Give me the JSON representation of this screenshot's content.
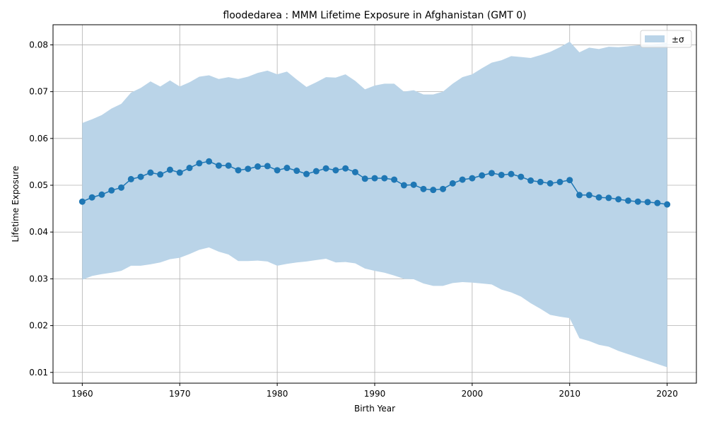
{
  "chart_data": {
    "type": "line",
    "title": "floodedarea : MMM Lifetime Exposure in Afghanistan (GMT 0)",
    "xlabel": "Birth Year",
    "ylabel": "Lifetime Exposure",
    "xlim": [
      1957,
      2023
    ],
    "ylim": [
      0.0077,
      0.0843
    ],
    "xticks": [
      1960,
      1970,
      1980,
      1990,
      2000,
      2010,
      2020
    ],
    "xtick_labels": [
      "1960",
      "1970",
      "1980",
      "1990",
      "2000",
      "2010",
      "2020"
    ],
    "yticks": [
      0.01,
      0.02,
      0.03,
      0.04,
      0.05,
      0.06,
      0.07,
      0.08
    ],
    "ytick_labels": [
      "0.01",
      "0.02",
      "0.03",
      "0.04",
      "0.05",
      "0.06",
      "0.07",
      "0.08"
    ],
    "grid": true,
    "legend": {
      "placement": "top-right",
      "entries": [
        "±σ"
      ]
    },
    "colors": {
      "line": "#1f77b4",
      "band": "#bad4e8",
      "grid": "#b0b0b0"
    },
    "x": [
      1960,
      1961,
      1962,
      1963,
      1964,
      1965,
      1966,
      1967,
      1968,
      1969,
      1970,
      1971,
      1972,
      1973,
      1974,
      1975,
      1976,
      1977,
      1978,
      1979,
      1980,
      1981,
      1982,
      1983,
      1984,
      1985,
      1986,
      1987,
      1988,
      1989,
      1990,
      1991,
      1992,
      1993,
      1994,
      1995,
      1996,
      1997,
      1998,
      1999,
      2000,
      2001,
      2002,
      2003,
      2004,
      2005,
      2006,
      2007,
      2008,
      2009,
      2010,
      2011,
      2012,
      2013,
      2014,
      2015,
      2016,
      2017,
      2018,
      2019,
      2020
    ],
    "series": [
      {
        "values": [
          0.0465,
          0.0474,
          0.048,
          0.0489,
          0.0495,
          0.0513,
          0.0518,
          0.0527,
          0.0523,
          0.0533,
          0.0527,
          0.0537,
          0.0547,
          0.0551,
          0.0542,
          0.0542,
          0.0532,
          0.0535,
          0.054,
          0.0541,
          0.0532,
          0.0537,
          0.0531,
          0.0524,
          0.053,
          0.0536,
          0.0532,
          0.0536,
          0.0528,
          0.0514,
          0.0515,
          0.0515,
          0.0512,
          0.05,
          0.0501,
          0.0492,
          0.049,
          0.0492,
          0.0504,
          0.0512,
          0.0515,
          0.0521,
          0.0526,
          0.0522,
          0.0524,
          0.0518,
          0.051,
          0.0507,
          0.0504,
          0.0507,
          0.0511,
          0.0479,
          0.0479,
          0.0474,
          0.0473,
          0.047,
          0.0467,
          0.0465,
          0.0464,
          0.0462,
          0.0459
        ]
      }
    ],
    "band": {
      "name": "±σ",
      "upper": [
        0.0633,
        0.0641,
        0.065,
        0.0664,
        0.0674,
        0.0698,
        0.0708,
        0.0722,
        0.0711,
        0.0724,
        0.0711,
        0.072,
        0.0732,
        0.0735,
        0.0727,
        0.0731,
        0.0727,
        0.0732,
        0.074,
        0.0745,
        0.0737,
        0.0743,
        0.0726,
        0.071,
        0.072,
        0.0731,
        0.073,
        0.0737,
        0.0723,
        0.0705,
        0.0713,
        0.0717,
        0.0717,
        0.07,
        0.0703,
        0.0694,
        0.0694,
        0.07,
        0.0717,
        0.0731,
        0.0737,
        0.075,
        0.0762,
        0.0767,
        0.0776,
        0.0774,
        0.0772,
        0.0778,
        0.0785,
        0.0795,
        0.0807,
        0.0784,
        0.0794,
        0.0791,
        0.0796,
        0.0795,
        0.0797,
        0.0799,
        0.08,
        0.0802,
        0.0805
      ],
      "lower": [
        0.0298,
        0.0306,
        0.031,
        0.0313,
        0.0317,
        0.0328,
        0.0328,
        0.0331,
        0.0335,
        0.0342,
        0.0345,
        0.0353,
        0.0362,
        0.0367,
        0.0358,
        0.0352,
        0.0338,
        0.0338,
        0.0339,
        0.0337,
        0.0328,
        0.0332,
        0.0335,
        0.0337,
        0.034,
        0.0343,
        0.0335,
        0.0336,
        0.0333,
        0.0322,
        0.0317,
        0.0313,
        0.0307,
        0.03,
        0.0299,
        0.029,
        0.0285,
        0.0285,
        0.0291,
        0.0293,
        0.0292,
        0.029,
        0.0288,
        0.0277,
        0.0271,
        0.0262,
        0.0248,
        0.0236,
        0.0223,
        0.0219,
        0.0216,
        0.0173,
        0.0167,
        0.0159,
        0.0155,
        0.0146,
        0.0139,
        0.0132,
        0.0125,
        0.0118,
        0.0111
      ]
    }
  }
}
